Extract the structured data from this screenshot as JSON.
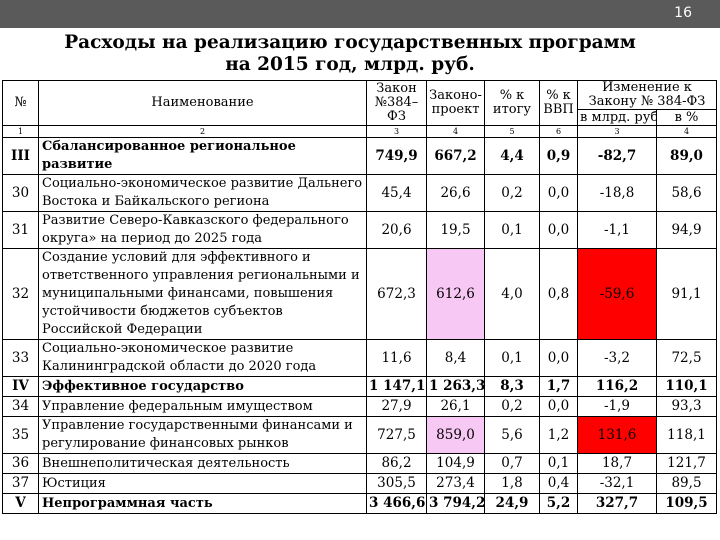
{
  "slide_number": "16",
  "title_line1": "Расходы на реализацию государственных программ",
  "title_line2": "на 2015 год, млрд. руб.",
  "headers": {
    "num": "№",
    "name": "Наименование",
    "law": "Закон №384–ФЗ",
    "draft": "Законо-проект",
    "pct_total": "% к итогу",
    "pct_gdp": "% к ВВП",
    "change": "Изменение к Закону № 384-ФЗ",
    "change_abs": "в млрд. руб.",
    "change_pct": "в %"
  },
  "column_numbers": [
    "1",
    "2",
    "3",
    "4",
    "5",
    "6",
    "3",
    "4"
  ],
  "rows": [
    {
      "num": "III",
      "name": "Сбалансированное региональное развитие",
      "law": "749,9",
      "draft": "667,2",
      "pct_total": "4,4",
      "pct_gdp": "0,9",
      "change_abs": "-82,7",
      "change_pct": "89,0",
      "bold": true
    },
    {
      "num": "30",
      "name": "Социально-экономическое развитие Дальнего Востока и Байкальского региона",
      "law": "45,4",
      "draft": "26,6",
      "pct_total": "0,2",
      "pct_gdp": "0,0",
      "change_abs": "-18,8",
      "change_pct": "58,6"
    },
    {
      "num": "31",
      "name": "Развитие Северо-Кавказского федерального округа» на период до 2025 года",
      "law": "20,6",
      "draft": "19,5",
      "pct_total": "0,1",
      "pct_gdp": "0,0",
      "change_abs": "-1,1",
      "change_pct": "94,9"
    },
    {
      "num": "32",
      "name": "Создание условий для эффективного и ответственного управления региональными и муниципальными финансами, повышения устойчивости бюджетов субъектов Российской Федерации",
      "law": "672,3",
      "draft": "612,6",
      "pct_total": "4,0",
      "pct_gdp": "0,8",
      "change_abs": "-59,6",
      "change_pct": "91,1",
      "draft_highlight": true,
      "change_highlight": true
    },
    {
      "num": "33",
      "name": "Социально-экономическое развитие Калининградской области до 2020 года",
      "law": "11,6",
      "draft": "8,4",
      "pct_total": "0,1",
      "pct_gdp": "0,0",
      "change_abs": "-3,2",
      "change_pct": "72,5"
    },
    {
      "num": "IV",
      "name": "Эффективное государство",
      "law": "1 147,1",
      "draft": "1 263,3",
      "pct_total": "8,3",
      "pct_gdp": "1,7",
      "change_abs": "116,2",
      "change_pct": "110,1",
      "bold": true
    },
    {
      "num": "34",
      "name": "Управление федеральным имуществом",
      "law": "27,9",
      "draft": "26,1",
      "pct_total": "0,2",
      "pct_gdp": "0,0",
      "change_abs": "-1,9",
      "change_pct": "93,3"
    },
    {
      "num": "35",
      "name": "Управление государственными финансами и регулирование финансовых рынков",
      "law": "727,5",
      "draft": "859,0",
      "pct_total": "5,6",
      "pct_gdp": "1,2",
      "change_abs": "131,6",
      "change_pct": "118,1",
      "draft_highlight": true,
      "change_highlight": true
    },
    {
      "num": "36",
      "name": "Внешнеполитическая деятельность",
      "law": "86,2",
      "draft": "104,9",
      "pct_total": "0,7",
      "pct_gdp": "0,1",
      "change_abs": "18,7",
      "change_pct": "121,7"
    },
    {
      "num": "37",
      "name": "Юстиция",
      "law": "305,5",
      "draft": "273,4",
      "pct_total": "1,8",
      "pct_gdp": "0,4",
      "change_abs": "-32,1",
      "change_pct": "89,5"
    },
    {
      "num": "V",
      "name": "Непрограммная часть",
      "law": "3 466,6",
      "draft": "3 794,2",
      "pct_total": "24,9",
      "pct_gdp": "5,2",
      "change_abs": "327,7",
      "change_pct": "109,5",
      "bold": true
    }
  ],
  "colors": {
    "topbar": "#5a5a5a",
    "pink_highlight": "#f7c8f4",
    "red_highlight": "#ff0000"
  }
}
